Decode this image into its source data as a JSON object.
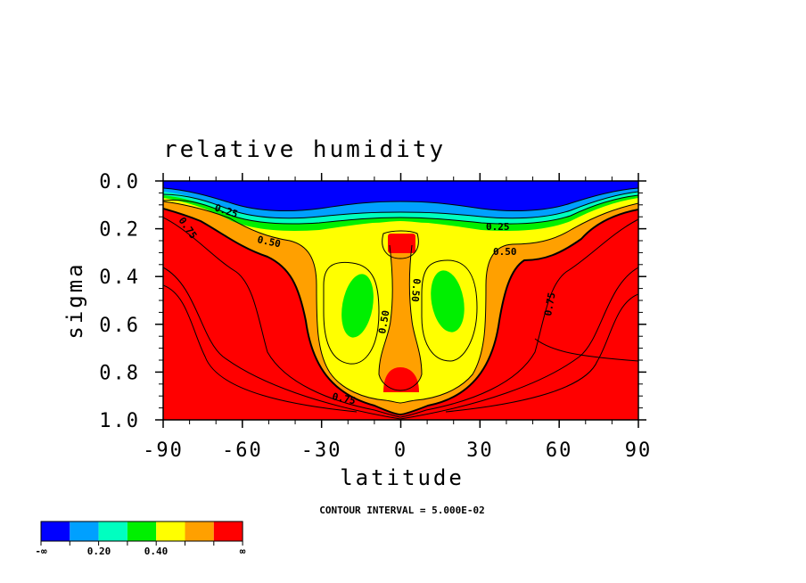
{
  "chart_data": {
    "type": "heatmap",
    "title": "relative humidity",
    "xlabel": "latitude",
    "ylabel": "sigma",
    "xlim": [
      -90,
      90
    ],
    "ylim": [
      1.0,
      0.0
    ],
    "x_ticks": [
      "-90",
      "-60",
      "-30",
      "0",
      "30",
      "60",
      "90"
    ],
    "y_ticks": [
      "0.0",
      "0.2",
      "0.4",
      "0.6",
      "0.8",
      "1.0"
    ],
    "contour_interval_text": "CONTOUR INTERVAL = 5.000E-02",
    "contour_labels": [
      "0.25",
      "0.25",
      "0.50",
      "0.50",
      "0.75",
      "0.75",
      "0.50",
      "0.50",
      "0.75"
    ],
    "colorbar": {
      "colors": [
        "#0000ff",
        "#00a0ff",
        "#00ffc0",
        "#00f000",
        "#ffff00",
        "#ffa000",
        "#ff0000"
      ],
      "labels": [
        "-∞",
        "0.20",
        "0.40",
        "∞"
      ]
    },
    "regions": [
      {
        "level": "<0.10",
        "color": "#0000ff",
        "lat_range": [
          -90,
          90
        ],
        "sigma_range": [
          0.0,
          0.1
        ]
      },
      {
        "level": "0.30-0.40",
        "color": "#00f000",
        "lat": -18,
        "sigma": 0.52
      },
      {
        "level": "0.30-0.40",
        "color": "#00f000",
        "lat": 20,
        "sigma": 0.52
      },
      {
        "level": ">0.60",
        "color": "#ff0000",
        "lat": 0,
        "sigma": 0.25
      },
      {
        "level": ">0.60",
        "color": "#ff0000",
        "lat": 0,
        "sigma": 0.9
      }
    ]
  }
}
